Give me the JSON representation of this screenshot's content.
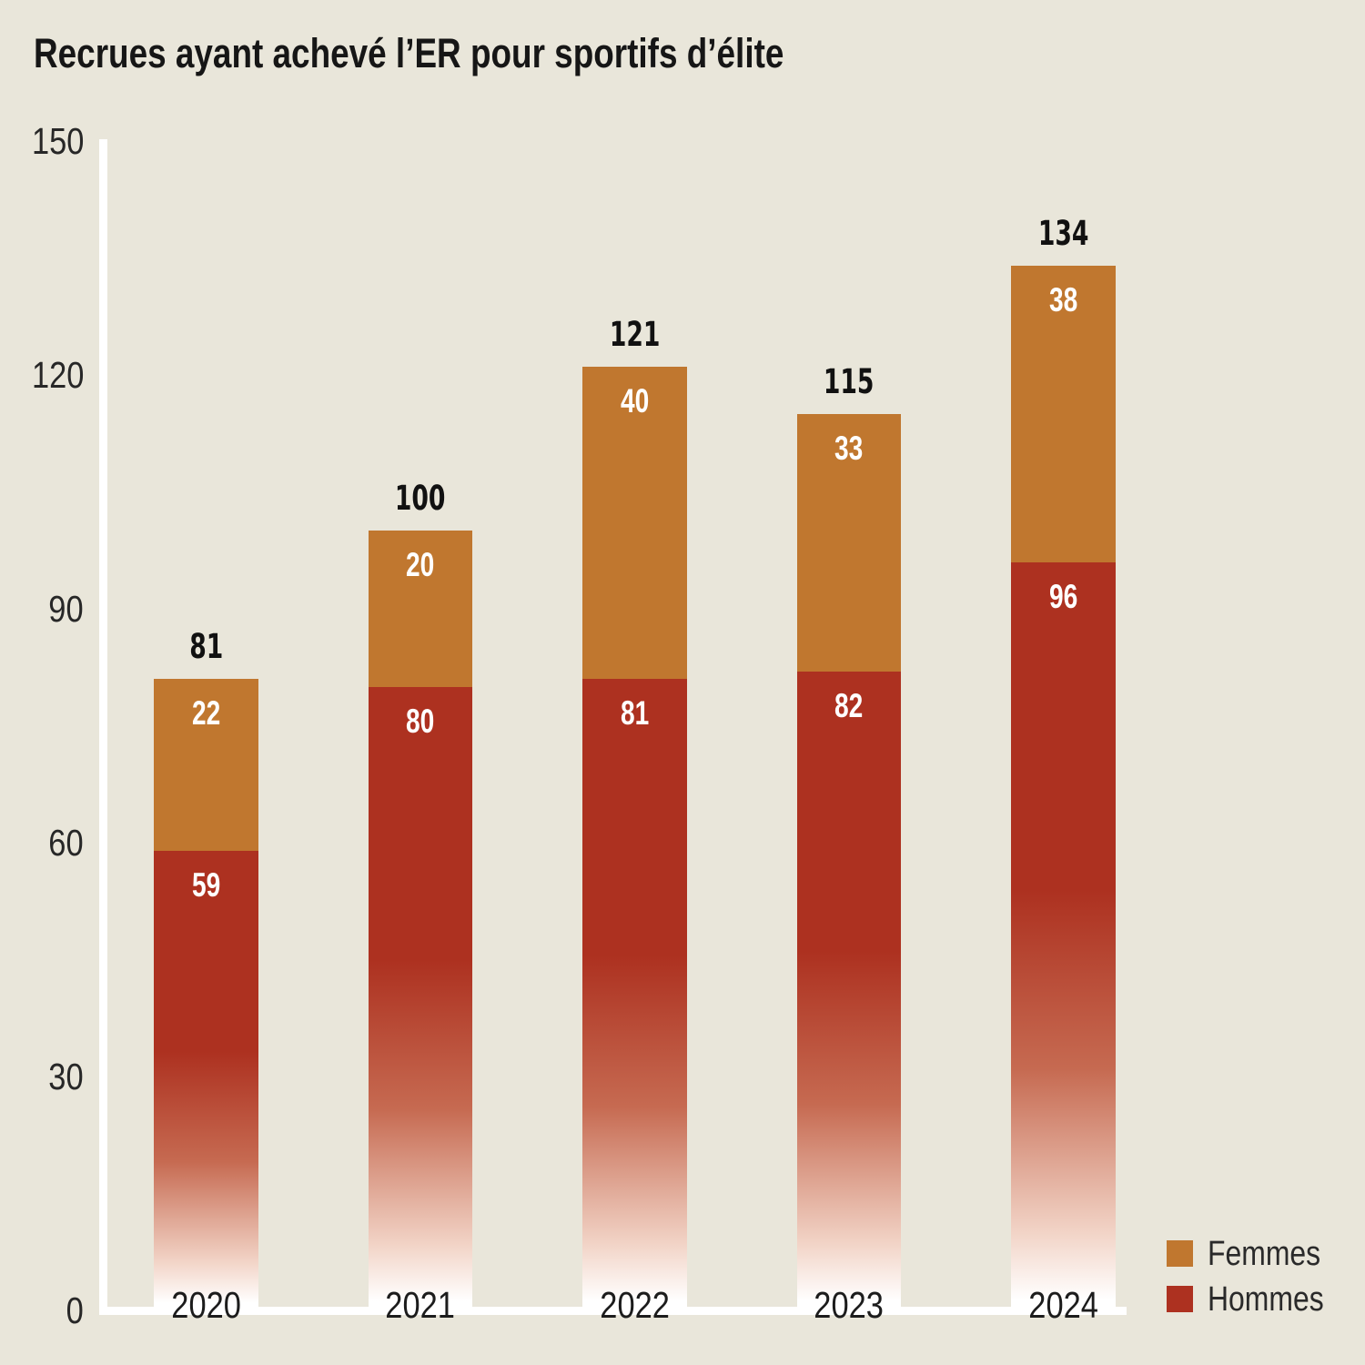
{
  "chart_data": {
    "type": "bar",
    "stacked": true,
    "title": "Recrues ayant achevé l’ER pour sportifs d’élite",
    "categories": [
      "2020",
      "2021",
      "2022",
      "2023",
      "2024"
    ],
    "series": [
      {
        "name": "Hommes",
        "color": "#ad3120",
        "values": [
          59,
          80,
          81,
          82,
          96
        ]
      },
      {
        "name": "Femmes",
        "color": "#c0772f",
        "values": [
          22,
          20,
          40,
          33,
          38
        ]
      }
    ],
    "totals": [
      81,
      100,
      121,
      115,
      134
    ],
    "xlabel": "",
    "ylabel": "",
    "ylim": [
      0,
      150
    ],
    "yticks": [
      0,
      30,
      60,
      90,
      120,
      150
    ],
    "grid": false,
    "legend": [
      "Femmes",
      "Hommes"
    ],
    "legend_position": "bottom-right",
    "colors": {
      "background": "#e9e6da",
      "axis_line": "#ffffff",
      "bar_fade_bottom": "#ffffff",
      "femmes": "#c0772f",
      "hommes": "#ad3120"
    }
  }
}
